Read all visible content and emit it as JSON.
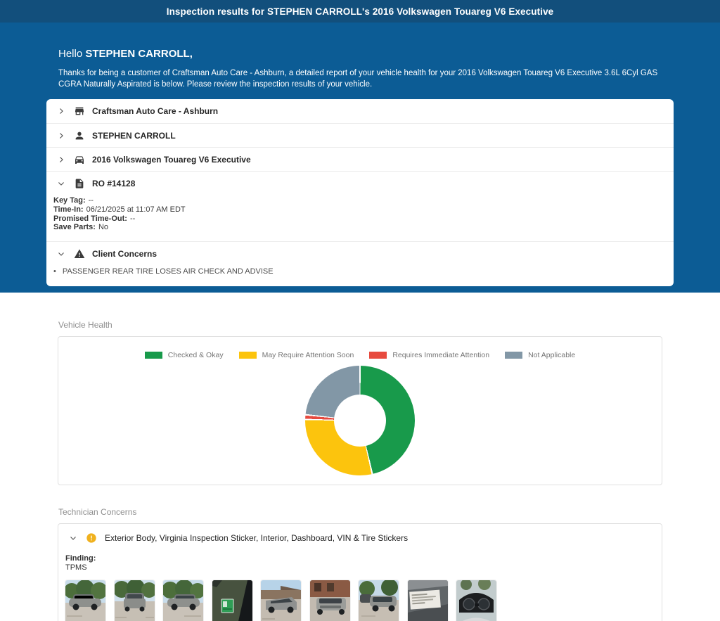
{
  "header": {
    "title": "Inspection results for STEPHEN CARROLL's 2016 Volkswagen Touareg V6 Executive"
  },
  "hero": {
    "greeting_prefix": "Hello ",
    "customer_name": "STEPHEN CARROLL,",
    "message": "Thanks for being a customer of Craftsman Auto Care - Ashburn, a detailed report of your vehicle health for your 2016 Volkswagen Touareg V6 Executive 3.6L 6Cyl GAS CGRA Naturally Aspirated is below. Please review the inspection results of your vehicle."
  },
  "summary_accordion": {
    "shop": {
      "label": "Craftsman Auto Care - Ashburn"
    },
    "customer": {
      "label": "STEPHEN CARROLL"
    },
    "vehicle": {
      "label": "2016 Volkswagen Touareg V6 Executive"
    },
    "ro": {
      "label": "RO #14128",
      "details": [
        {
          "label": "Key Tag:",
          "value": "--"
        },
        {
          "label": "Time-In:",
          "value": "06/21/2025 at 11:07 AM EDT"
        },
        {
          "label": "Promised Time-Out:",
          "value": "--"
        },
        {
          "label": "Save Parts:",
          "value": "No"
        }
      ]
    },
    "client_concerns": {
      "label": "Client Concerns",
      "items": [
        "PASSENGER REAR TIRE LOSES AIR CHECK AND ADVISE"
      ]
    }
  },
  "vehicle_health": {
    "section_title": "Vehicle Health"
  },
  "chart_data": {
    "type": "pie",
    "title": "Vehicle Health",
    "donut": true,
    "legend_position": "top",
    "labels": [
      "Checked & Okay",
      "May Require Attention Soon",
      "Requires Immediate Attention",
      "Not Applicable"
    ],
    "values_pct": [
      46.4,
      28.9,
      1.4,
      23.3
    ],
    "colors": [
      "#189a4b",
      "#fcc40d",
      "#e74a3e",
      "#8297a6"
    ],
    "start_angle_deg": 0,
    "direction": "clockwise"
  },
  "technician_concerns": {
    "section_title": "Technician Concerns",
    "group_title": "Exterior Body, Virginia Inspection Sticker, Interior, Dashboard, VIN & Tire Stickers",
    "finding_label": "Finding:",
    "finding_value": "TPMS",
    "photos": [
      "vehicle exterior side view in parking lot",
      "vehicle rear view in parking lot",
      "vehicle rear three-quarter view in parking lot",
      "green Virginia inspection sticker on windshield",
      "vehicle front three-quarter view near building",
      "vehicle front view near brick building",
      "vehicle side view in parking lot",
      "VIN and tire placard sticker on door jamb",
      "dashboard instrument cluster"
    ]
  },
  "colors": {
    "topbar_blue": "#124f7c",
    "hero_blue": "#0c5c95",
    "status_green": "#189a4b",
    "status_yellow": "#fcc40d",
    "status_red": "#e74a3e",
    "status_gray": "#8297a6",
    "warning_amber": "#f0b11e"
  }
}
